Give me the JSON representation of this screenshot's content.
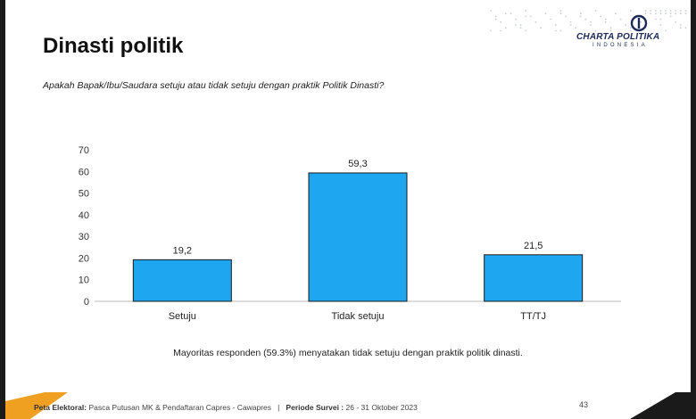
{
  "slide": {
    "title": "Dinasti politik",
    "question": "Apakah Bapak/Ibu/Saudara setuju atau tidak setuju dengan praktik Politik Dinasti?",
    "note": "Mayoritas responden (59.3%) menyatakan tidak setuju dengan praktik politik dinasti.",
    "page_number": "43"
  },
  "logo": {
    "name": "CHARTA POLITIKA",
    "sub": "INDONESIA"
  },
  "footer": {
    "label1": "Peta Elektoral:",
    "text1": "Pasca Putusan MK & Pendaftaran Capres - Cawapres",
    "separator": "|",
    "label2": "Periode Survei :",
    "text2": "26 - 31 Oktober 2023"
  },
  "colors": {
    "bar": "#1ea6f0",
    "bar_stroke": "#1a1a1a",
    "accent_orange": "#f0a020",
    "dark_bg": "#1a1a1a"
  },
  "chart_data": {
    "type": "bar",
    "categories": [
      "Setuju",
      "Tidak setuju",
      "TT/TJ"
    ],
    "values": [
      19.2,
      59.3,
      21.5
    ],
    "value_labels": [
      "19,2",
      "59,3",
      "21,5"
    ],
    "ylim": [
      0,
      70
    ],
    "yticks": [
      0,
      10,
      20,
      30,
      40,
      50,
      60,
      70
    ],
    "grid": false,
    "legend": "none"
  }
}
